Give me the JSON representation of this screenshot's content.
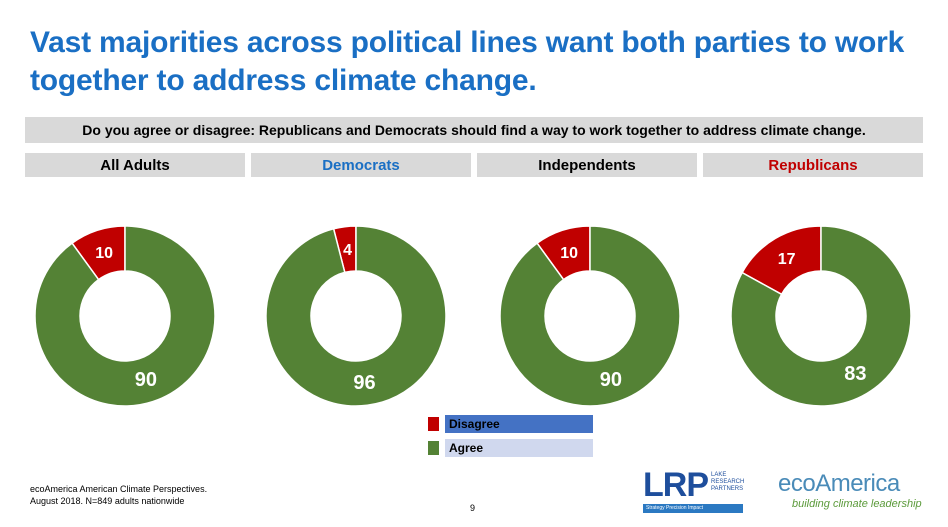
{
  "title": "Vast majorities across political lines want both parties to work together to address climate change.",
  "question": "Do you agree or disagree: Republicans and Democrats should find a way to work together to address climate change.",
  "colors": {
    "title": "#1a6fc4",
    "disagree": "#c00000",
    "agree": "#548235",
    "democrats": "#1a6fc4",
    "republicans": "#c00000",
    "neutral": "#000000",
    "header_bg": "#d9d9d9",
    "legend_disagree_bg": "#4472c4",
    "legend_agree_bg": "#d0d8ee"
  },
  "chart_data": {
    "type": "pie",
    "subtype": "donut",
    "groups": [
      "All Adults",
      "Democrats",
      "Independents",
      "Republicans"
    ],
    "group_colors": [
      "#000000",
      "#1a6fc4",
      "#000000",
      "#c00000"
    ],
    "series": [
      {
        "name": "Disagree",
        "color": "#c00000",
        "values": [
          10,
          4,
          10,
          17
        ]
      },
      {
        "name": "Agree",
        "color": "#548235",
        "values": [
          90,
          96,
          90,
          83
        ]
      }
    ],
    "legend": [
      {
        "label": "Disagree",
        "color": "#c00000"
      },
      {
        "label": "Agree",
        "color": "#548235"
      }
    ]
  },
  "footnote": {
    "line1": "ecoAmerica American Climate Perspectives.",
    "line2": "August 2018. N=849 adults nationwide"
  },
  "page_number": "9",
  "logos": {
    "lrp": {
      "letters": "LRP",
      "line1": "LAKE",
      "line2": "RESEARCH",
      "line3": "PARTNERS",
      "tagline": "Strategy  Precision  Impact"
    },
    "ecoamerica": {
      "name": "ecoAmerica",
      "tagline": "building climate leadership"
    }
  }
}
